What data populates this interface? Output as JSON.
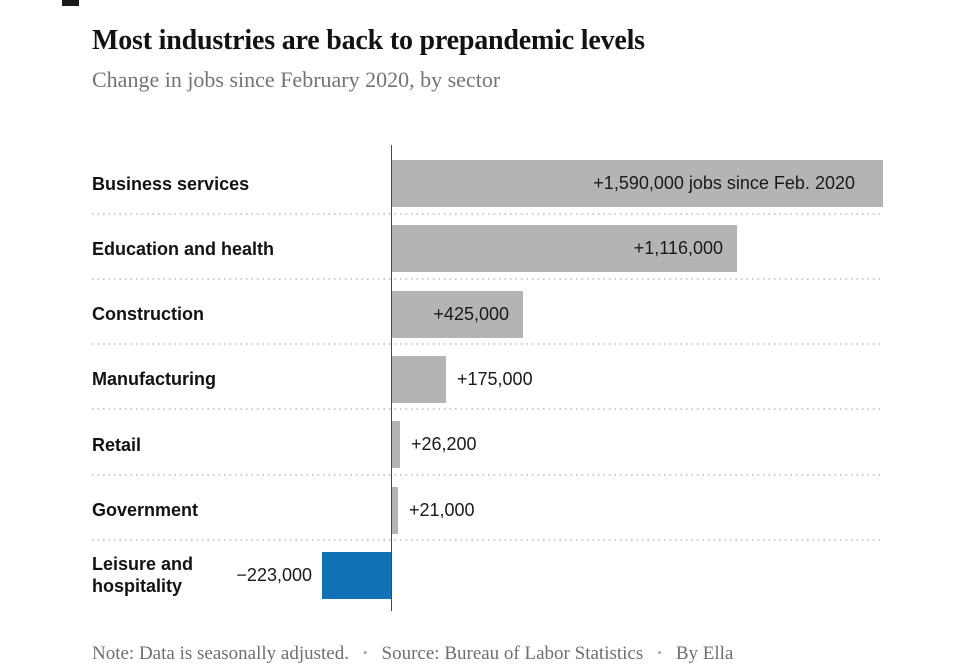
{
  "chart_data": {
    "type": "bar",
    "orientation": "horizontal",
    "title": "Most industries are back to prepandemic levels",
    "subtitle": "Change in jobs since February 2020, by sector",
    "categories": [
      "Business services",
      "Education and health",
      "Construction",
      "Manufacturing",
      "Retail",
      "Government",
      "Leisure and hospitality"
    ],
    "values": [
      1590000,
      1116000,
      425000,
      175000,
      26200,
      21000,
      -223000
    ],
    "value_labels": [
      "+1,590,000 jobs since Feb. 2020",
      "+1,116,000",
      "+425,000",
      "+175,000",
      "+26,200",
      "+21,000",
      "−223,000"
    ],
    "label_placement": [
      "inside",
      "inside",
      "inside",
      "outside",
      "outside",
      "outside",
      "outside-left"
    ],
    "baseline_at_zero": true,
    "xlim": [
      -250000,
      1600000
    ],
    "grid": "dotted-row-separators",
    "legend": "none",
    "colors": {
      "positive_bar": "#b4b4b4",
      "negative_bar": "#1072b5",
      "axis_line": "#4a4a4a",
      "separator": "#cdcdcd"
    }
  },
  "footer": {
    "note": "Note: Data is seasonally adjusted.",
    "bullet": "•",
    "source": "Source: Bureau of Labor Statistics",
    "byline": "By Ella"
  }
}
